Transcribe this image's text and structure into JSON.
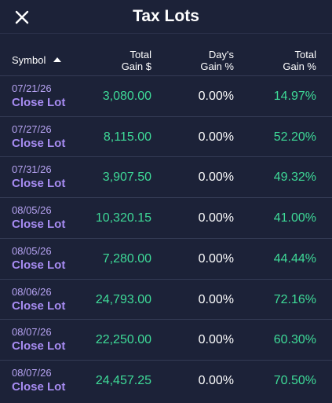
{
  "header": {
    "title": "Tax Lots"
  },
  "table": {
    "columns": [
      [
        "Symbol"
      ],
      [
        "Total",
        "Gain $"
      ],
      [
        "Day's",
        "Gain %"
      ],
      [
        "Total",
        "Gain %"
      ]
    ],
    "rows": [
      {
        "date": "07/21/26",
        "action": "Close Lot",
        "total_gain": "3,080.00",
        "day_gain_pct": "0.00%",
        "total_gain_pct": "14.97%"
      },
      {
        "date": "07/27/26",
        "action": "Close Lot",
        "total_gain": "8,115.00",
        "day_gain_pct": "0.00%",
        "total_gain_pct": "52.20%"
      },
      {
        "date": "07/31/26",
        "action": "Close Lot",
        "total_gain": "3,907.50",
        "day_gain_pct": "0.00%",
        "total_gain_pct": "49.32%"
      },
      {
        "date": "08/05/26",
        "action": "Close Lot",
        "total_gain": "10,320.15",
        "day_gain_pct": "0.00%",
        "total_gain_pct": "41.00%"
      },
      {
        "date": "08/05/26",
        "action": "Close Lot",
        "total_gain": "7,280.00",
        "day_gain_pct": "0.00%",
        "total_gain_pct": "44.44%"
      },
      {
        "date": "08/06/26",
        "action": "Close Lot",
        "total_gain": "24,793.00",
        "day_gain_pct": "0.00%",
        "total_gain_pct": "72.16%"
      },
      {
        "date": "08/07/26",
        "action": "Close Lot",
        "total_gain": "22,250.00",
        "day_gain_pct": "0.00%",
        "total_gain_pct": "60.30%"
      },
      {
        "date": "08/07/26",
        "action": "Close Lot",
        "total_gain": "24,457.25",
        "day_gain_pct": "0.00%",
        "total_gain_pct": "70.50%"
      }
    ]
  }
}
